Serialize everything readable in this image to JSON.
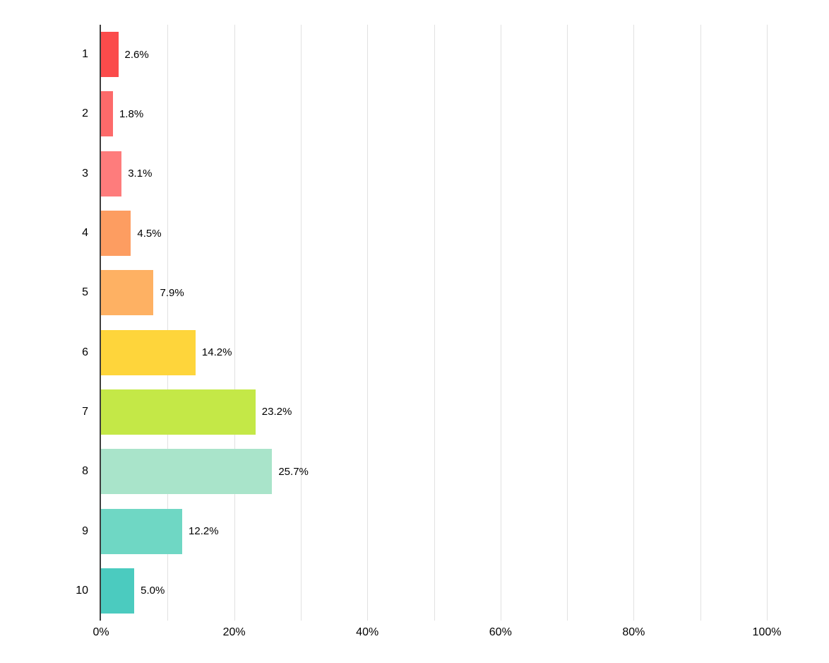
{
  "chart_data": {
    "type": "bar",
    "orientation": "horizontal",
    "title": "",
    "xlabel": "",
    "ylabel": "",
    "categories": [
      "1",
      "2",
      "3",
      "4",
      "5",
      "6",
      "7",
      "8",
      "9",
      "10"
    ],
    "values": [
      2.6,
      1.8,
      3.1,
      4.5,
      7.9,
      14.2,
      23.2,
      25.7,
      12.2,
      5.0
    ],
    "value_labels": [
      "2.6%",
      "1.8%",
      "3.1%",
      "4.5%",
      "7.9%",
      "14.2%",
      "23.2%",
      "25.7%",
      "12.2%",
      "5.0%"
    ],
    "bar_colors": [
      "#fb4b4b",
      "#fd6a6a",
      "#fe7c7c",
      "#fd9d61",
      "#feb163",
      "#fed53b",
      "#c4e847",
      "#a9e4ca",
      "#6fd7c4",
      "#4bcbbf"
    ],
    "xlim": [
      0,
      100
    ],
    "x_tick_labels": [
      "0%",
      "20%",
      "40%",
      "60%",
      "80%",
      "100%"
    ],
    "x_tick_positions_percent": [
      0,
      20,
      40,
      60,
      80,
      100
    ],
    "gridline_interval_percent": 10,
    "grid": "vertical-only",
    "legend": "none",
    "colors": {
      "axis_line": "#3e3e3e",
      "gridline": "#e1e1e1",
      "text": "#000000",
      "background": "#ffffff"
    }
  }
}
